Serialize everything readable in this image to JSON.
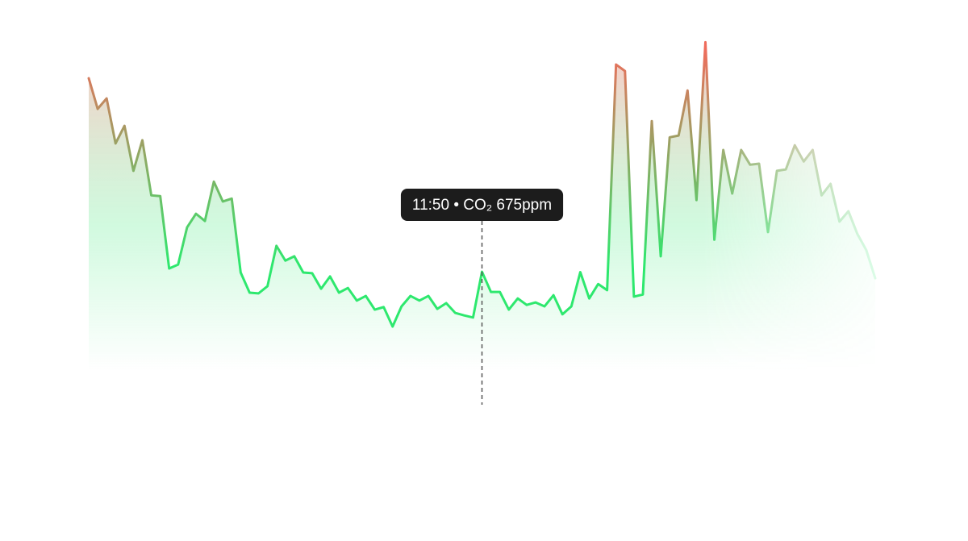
{
  "chart_data": {
    "type": "area",
    "tooltip": "11:50 • CO₂ 675ppm",
    "values": [
      1212,
      1127,
      1156,
      1031,
      1080,
      955,
      1040,
      887,
      885,
      684,
      695,
      798,
      836,
      816,
      925,
      870,
      878,
      673,
      617,
      615,
      635,
      747,
      706,
      718,
      673,
      671,
      628,
      662,
      617,
      630,
      595,
      608,
      570,
      577,
      523,
      579,
      608,
      595,
      608,
      572,
      588,
      561,
      554,
      548,
      675,
      619,
      619,
      570,
      601,
      583,
      590,
      579,
      610,
      557,
      579,
      674,
      601,
      641,
      624,
      1250,
      1232,
      606,
      612,
      1093,
      718,
      1048,
      1053,
      1178,
      874,
      1312,
      764,
      1013,
      892,
      1013,
      972,
      975,
      785,
      955,
      959,
      1026,
      981,
      1013,
      887,
      919,
      814,
      843,
      780,
      735,
      657
    ],
    "ylim": [
      400,
      1400
    ],
    "colors": {
      "low": "#2ee86e",
      "high": "#ef6b5b"
    }
  }
}
